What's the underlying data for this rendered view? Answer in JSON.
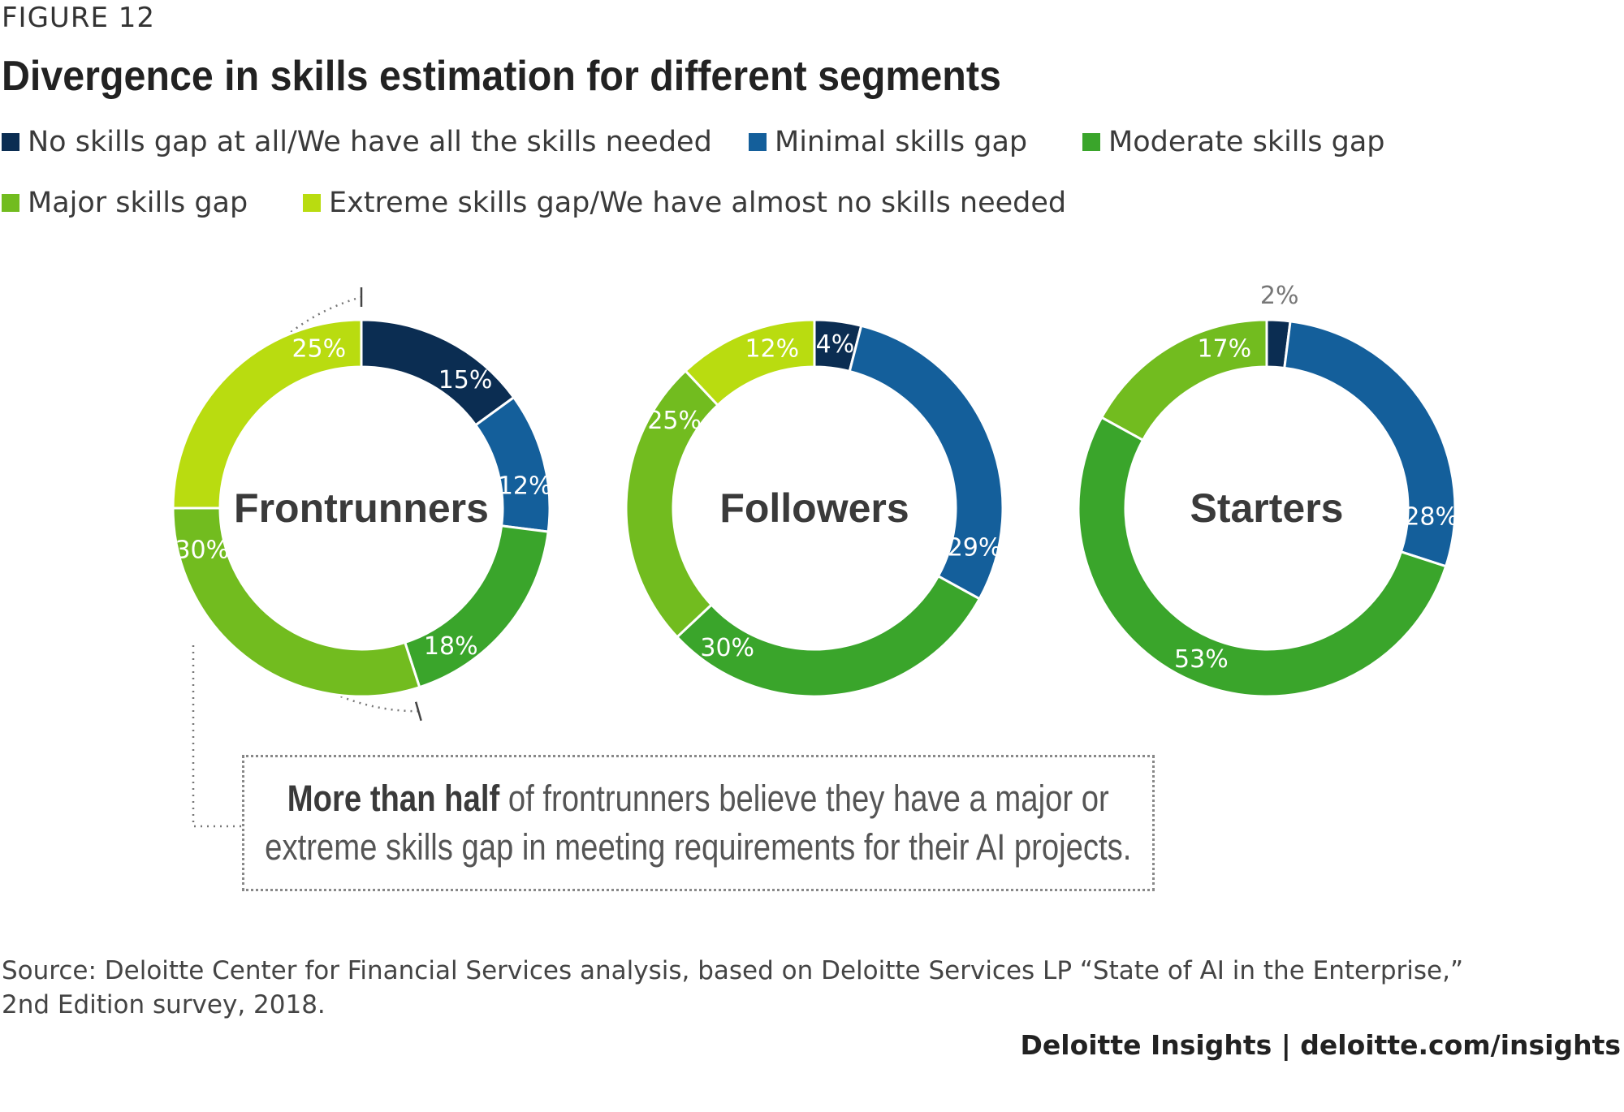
{
  "figure_label": "FIGURE 12",
  "title": "Divergence in skills estimation for different segments",
  "legend": [
    {
      "label": "No skills gap at all/We have all the skills needed",
      "color": "#0b2d52"
    },
    {
      "label": "Minimal skills gap",
      "color": "#145f9b"
    },
    {
      "label": "Moderate skills gap",
      "color": "#3aa52b"
    },
    {
      "label": "Major skills gap",
      "color": "#72bc1f"
    },
    {
      "label": "Extreme skills gap/We have almost no skills needed",
      "color": "#b9dc10"
    }
  ],
  "chart_data": {
    "type": "donut",
    "categories": [
      "No skills gap at all/We have all the skills needed",
      "Minimal skills gap",
      "Moderate skills gap",
      "Major skills gap",
      "Extreme skills gap/We have almost no skills needed"
    ],
    "series": [
      {
        "name": "Frontrunners",
        "values": [
          15,
          12,
          18,
          30,
          25
        ]
      },
      {
        "name": "Followers",
        "values": [
          4,
          29,
          30,
          25,
          12
        ]
      },
      {
        "name": "Starters",
        "values": [
          2,
          28,
          53,
          17,
          0
        ]
      }
    ],
    "unit": "%"
  },
  "callout": {
    "bold": "More than half",
    "line1_rest": " of frontrunners believe they have a major or",
    "line2": "extreme skills gap in meeting requirements for their AI projects."
  },
  "source": {
    "line1": "Source: Deloitte Center for Financial Services analysis, based on Deloitte Services LP “State of AI in the Enterprise,”",
    "line2": "2nd Edition survey, 2018."
  },
  "footer": "Deloitte Insights | deloitte.com/insights"
}
